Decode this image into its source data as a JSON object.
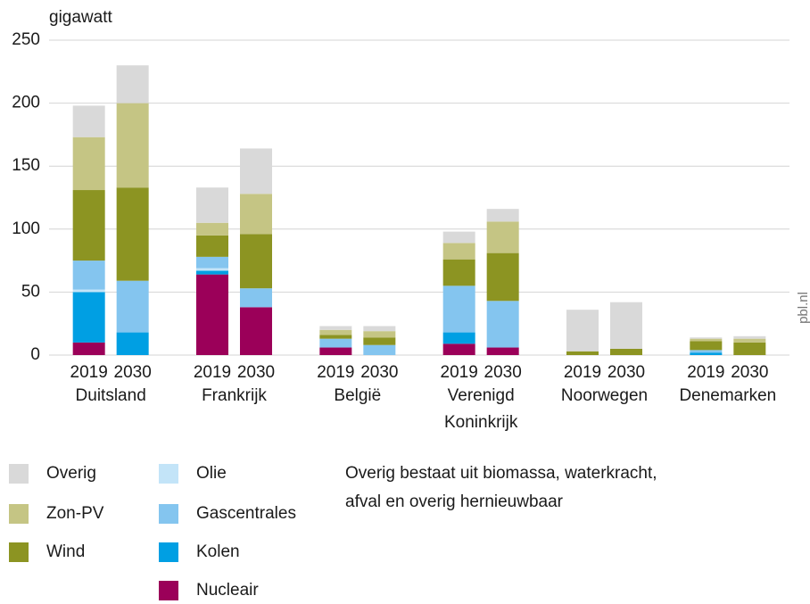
{
  "chart_data": {
    "type": "stacked_bar",
    "y_label": "gigawatt",
    "categories": [
      "2019",
      "2030",
      "2019",
      "2030",
      "2019",
      "2030",
      "2019",
      "2030",
      "2019",
      "2030",
      "2019",
      "2030"
    ],
    "groups": [
      [
        "Duitsland"
      ],
      [
        "Frankrijk"
      ],
      [
        "België"
      ],
      [
        "Verenigd",
        "Koninkrijk"
      ],
      [
        "Noorwegen"
      ],
      [
        "Denemarken"
      ]
    ],
    "series": [
      {
        "name": "Nucleair",
        "color": "#9b0059",
        "values": [
          10,
          0,
          64,
          38,
          6,
          0,
          9,
          6,
          0,
          0,
          0,
          0
        ]
      },
      {
        "name": "Kolen",
        "color": "#009fe3",
        "values": [
          40,
          18,
          3,
          0,
          0,
          0,
          9,
          0,
          0,
          0,
          2,
          0
        ]
      },
      {
        "name": "Olie",
        "color": "#c3e4f8",
        "values": [
          2,
          0,
          2,
          0,
          0,
          0,
          0,
          0,
          0,
          0,
          0,
          0
        ]
      },
      {
        "name": "Gascentrales",
        "color": "#84c5ef",
        "values": [
          23,
          41,
          9,
          15,
          7,
          8,
          37,
          37,
          0,
          0,
          2,
          0
        ]
      },
      {
        "name": "Wind",
        "color": "#8c9422",
        "values": [
          56,
          74,
          17,
          43,
          3,
          6,
          21,
          38,
          3,
          5,
          7,
          10
        ]
      },
      {
        "name": "Zon-PV",
        "color": "#c5c584",
        "values": [
          42,
          67,
          10,
          32,
          4,
          5,
          13,
          25,
          0,
          0,
          2,
          3
        ]
      },
      {
        "name": "Overig",
        "color": "#d9d9d9",
        "values": [
          25,
          30,
          28,
          36,
          3,
          4,
          9,
          10,
          33,
          37,
          1,
          2
        ]
      }
    ],
    "ylim": [
      0,
      250
    ],
    "yticks": [
      0,
      50,
      100,
      150,
      200,
      250
    ],
    "grid": true,
    "note": [
      "Overig bestaat uit biomassa, waterkracht,",
      "afval en overig hernieuwbaar"
    ],
    "source": "pbl.nl"
  }
}
